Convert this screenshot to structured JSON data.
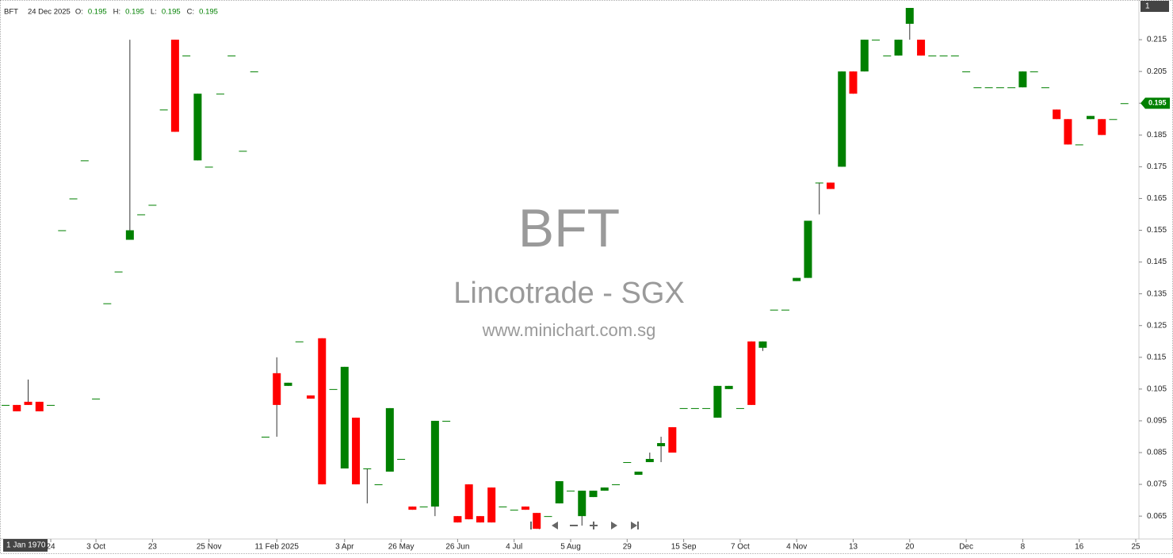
{
  "chart_data": {
    "type": "candlestick",
    "header": {
      "symbol": "BFT",
      "date": "24 Dec 2025",
      "fields": [
        {
          "label": "O:",
          "value": 0.195
        },
        {
          "label": "H:",
          "value": 0.195
        },
        {
          "label": "L:",
          "value": 0.195
        },
        {
          "label": "C:",
          "value": 0.195
        }
      ]
    },
    "watermark": [
      "BFT",
      "Lincotrade - SGX",
      "www.minichart.com.sg"
    ],
    "panel_label": "1",
    "crosshair_label": "1 Jan 1970",
    "last_price": 0.195,
    "up_color": "#008000",
    "down_color": "#ff0000",
    "ylim": [
      0.0578,
      0.2275
    ],
    "yticks": [
      0.065,
      0.075,
      0.085,
      0.095,
      0.105,
      0.115,
      0.125,
      0.135,
      0.145,
      0.155,
      0.165,
      0.175,
      0.185,
      0.195,
      0.205,
      0.215
    ],
    "categories": [
      null,
      null,
      null,
      null,
      "24",
      null,
      null,
      null,
      "3 Oct",
      null,
      null,
      null,
      null,
      "23",
      null,
      null,
      null,
      null,
      "25 Nov",
      null,
      null,
      null,
      null,
      null,
      "11 Feb 2025",
      null,
      null,
      null,
      null,
      null,
      "3 Apr",
      null,
      null,
      null,
      null,
      "26 May",
      null,
      null,
      null,
      null,
      "26 Jun",
      null,
      null,
      null,
      null,
      "4 Jul",
      null,
      null,
      null,
      null,
      "5 Aug",
      null,
      null,
      null,
      null,
      "29",
      null,
      null,
      null,
      null,
      "15 Sep",
      null,
      null,
      null,
      null,
      "7 Oct",
      null,
      null,
      null,
      null,
      "4 Nov",
      null,
      null,
      null,
      null,
      "13",
      null,
      null,
      null,
      null,
      "20",
      null,
      null,
      null,
      null,
      "Dec",
      null,
      null,
      null,
      null,
      "8",
      null,
      null,
      null,
      null,
      "16",
      null,
      null,
      null,
      null,
      "25"
    ],
    "open": [
      0.1,
      0.1,
      0.101,
      0.101,
      0.1,
      0.155,
      0.165,
      0.177,
      0.102,
      0.132,
      0.142,
      0.152,
      0.16,
      0.163,
      0.193,
      0.215,
      0.21,
      0.177,
      0.175,
      0.198,
      0.21,
      0.18,
      0.205,
      0.09,
      0.11,
      0.106,
      0.12,
      0.103,
      0.121,
      0.105,
      0.08,
      0.096,
      0.08,
      0.075,
      0.079,
      0.083,
      0.068,
      0.068,
      0.068,
      0.095,
      0.065,
      0.075,
      0.065,
      0.074,
      0.068,
      0.067,
      0.068,
      0.066,
      0.065,
      0.069,
      0.073,
      0.065,
      0.071,
      0.073,
      0.075,
      0.082,
      0.078,
      0.082,
      0.087,
      0.093,
      0.099,
      0.099,
      0.099,
      0.096,
      0.105,
      0.099,
      0.12,
      0.118,
      0.13,
      0.13,
      0.139,
      0.14,
      0.17,
      0.17,
      0.175,
      0.205,
      0.205,
      0.215,
      0.21,
      0.21,
      0.22,
      0.215,
      0.21,
      0.21,
      0.21,
      0.205,
      0.2,
      0.2,
      0.2,
      0.2,
      0.2,
      0.205,
      0.2,
      0.193,
      0.19,
      0.182,
      0.19,
      0.19,
      0.19,
      0.195,
      null
    ],
    "high": [
      0.1,
      0.1,
      0.108,
      0.101,
      0.1,
      0.155,
      0.165,
      0.177,
      0.102,
      0.132,
      0.142,
      0.215,
      0.16,
      0.163,
      0.193,
      0.215,
      0.21,
      0.198,
      0.175,
      0.198,
      0.21,
      0.18,
      0.205,
      0.09,
      0.115,
      0.107,
      0.12,
      0.103,
      0.121,
      0.105,
      0.112,
      0.096,
      0.08,
      0.075,
      0.099,
      0.083,
      0.068,
      0.068,
      0.095,
      0.095,
      0.065,
      0.075,
      0.065,
      0.074,
      0.068,
      0.067,
      0.068,
      0.066,
      0.065,
      0.076,
      0.073,
      0.073,
      0.073,
      0.074,
      0.075,
      0.082,
      0.079,
      0.085,
      0.09,
      0.093,
      0.099,
      0.099,
      0.099,
      0.106,
      0.106,
      0.099,
      0.12,
      0.12,
      0.13,
      0.13,
      0.14,
      0.158,
      0.17,
      0.17,
      0.205,
      0.205,
      0.215,
      0.215,
      0.21,
      0.215,
      0.225,
      0.215,
      0.21,
      0.21,
      0.21,
      0.205,
      0.2,
      0.2,
      0.2,
      0.2,
      0.205,
      0.205,
      0.2,
      0.193,
      0.19,
      0.182,
      0.191,
      0.19,
      0.19,
      0.195,
      null
    ],
    "low": [
      0.1,
      0.098,
      0.1,
      0.098,
      0.1,
      0.155,
      0.165,
      0.177,
      0.102,
      0.132,
      0.142,
      0.152,
      0.16,
      0.163,
      0.193,
      0.186,
      0.21,
      0.177,
      0.175,
      0.198,
      0.21,
      0.18,
      0.205,
      0.09,
      0.09,
      0.106,
      0.12,
      0.102,
      0.075,
      0.105,
      0.08,
      0.075,
      0.069,
      0.075,
      0.079,
      0.083,
      0.067,
      0.068,
      0.065,
      0.095,
      0.063,
      0.064,
      0.063,
      0.063,
      0.068,
      0.067,
      0.067,
      0.061,
      0.065,
      0.069,
      0.073,
      0.062,
      0.071,
      0.073,
      0.075,
      0.082,
      0.078,
      0.082,
      0.082,
      0.085,
      0.099,
      0.099,
      0.099,
      0.096,
      0.105,
      0.099,
      0.1,
      0.117,
      0.13,
      0.13,
      0.139,
      0.14,
      0.16,
      0.168,
      0.175,
      0.198,
      0.205,
      0.215,
      0.21,
      0.21,
      0.215,
      0.21,
      0.21,
      0.21,
      0.21,
      0.205,
      0.2,
      0.2,
      0.2,
      0.2,
      0.2,
      0.205,
      0.2,
      0.19,
      0.182,
      0.182,
      0.19,
      0.185,
      0.19,
      0.195,
      null
    ],
    "close": [
      0.1,
      0.098,
      0.1,
      0.098,
      0.1,
      0.155,
      0.165,
      0.177,
      0.102,
      0.132,
      0.142,
      0.155,
      0.16,
      0.163,
      0.193,
      0.186,
      0.21,
      0.198,
      0.175,
      0.198,
      0.21,
      0.18,
      0.205,
      0.09,
      0.1,
      0.107,
      0.12,
      0.102,
      0.075,
      0.105,
      0.112,
      0.075,
      0.08,
      0.075,
      0.099,
      0.083,
      0.067,
      0.068,
      0.095,
      0.095,
      0.063,
      0.064,
      0.063,
      0.063,
      0.068,
      0.067,
      0.067,
      0.061,
      0.065,
      0.076,
      0.073,
      0.073,
      0.073,
      0.074,
      0.075,
      0.082,
      0.079,
      0.083,
      0.088,
      0.085,
      0.099,
      0.099,
      0.099,
      0.106,
      0.106,
      0.099,
      0.1,
      0.12,
      0.13,
      0.13,
      0.14,
      0.158,
      0.17,
      0.168,
      0.205,
      0.198,
      0.215,
      0.215,
      0.21,
      0.215,
      0.225,
      0.21,
      0.21,
      0.21,
      0.21,
      0.205,
      0.2,
      0.2,
      0.2,
      0.2,
      0.205,
      0.205,
      0.2,
      0.19,
      0.182,
      0.182,
      0.191,
      0.185,
      0.19,
      0.195,
      null
    ]
  }
}
